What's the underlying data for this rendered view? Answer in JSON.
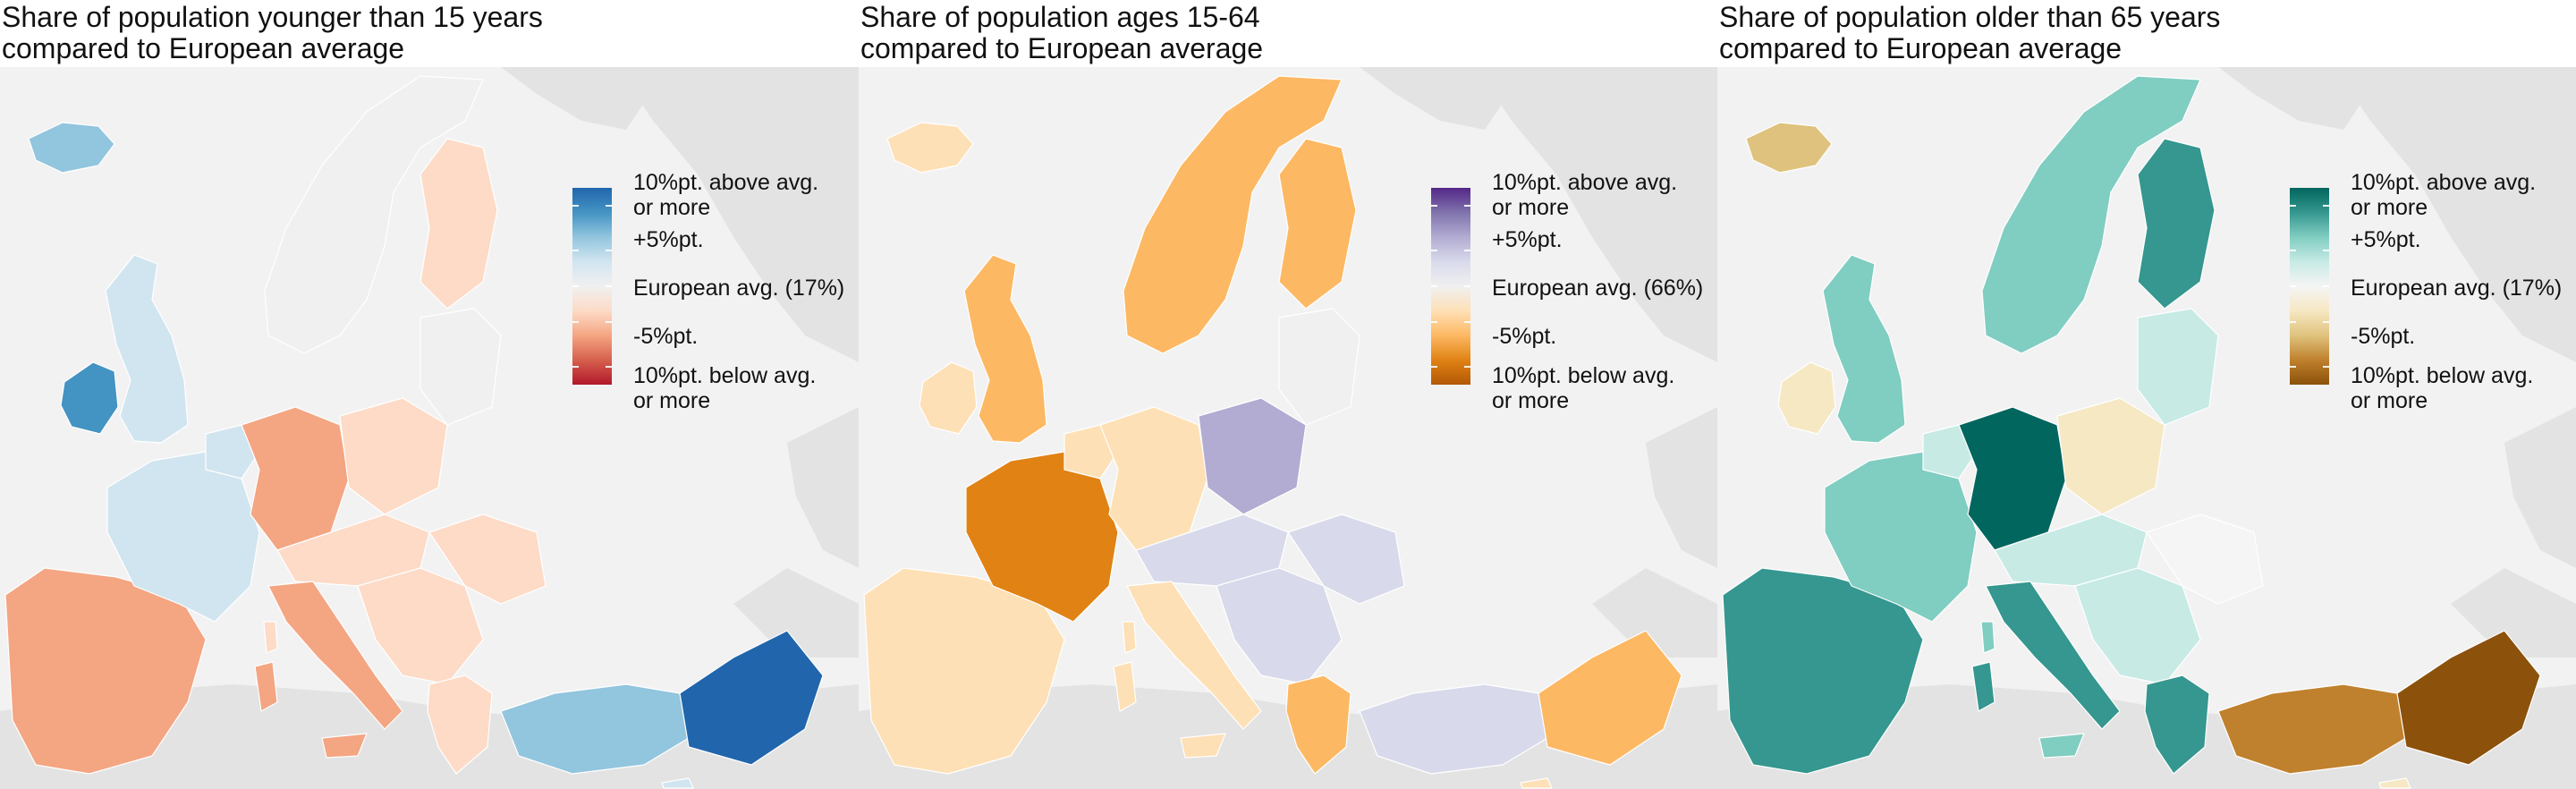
{
  "panels": [
    {
      "id": "young",
      "title_line1": "Share of population younger than 15 years",
      "title_line2": "compared to European average",
      "legend": {
        "top_line1": "10%pt. above avg.",
        "top_line2": "or more",
        "plus5": "+5%pt.",
        "avg": "European avg. (17%)",
        "minus5": "-5%pt.",
        "bottom_line1": "10%pt. below avg.",
        "bottom_line2": "or more"
      },
      "palette": [
        "#b2182b",
        "#d6604d",
        "#f4a582",
        "#fddbc7",
        "#f0f0f0",
        "#d1e5f0",
        "#92c5de",
        "#4393c3",
        "#2166ac"
      ],
      "region_levels": {
        "iceland": 6,
        "ireland": 7,
        "uk": 5,
        "scandinavia": 4,
        "finland": 3,
        "baltic": 4,
        "iberia": 2,
        "france": 5,
        "benelux": 5,
        "germany": 2,
        "poland": 3,
        "central": 3,
        "italy": 2,
        "balkans": 3,
        "greece": 3,
        "romania": 3,
        "turkey_w": 6,
        "turkey_e": 8,
        "cyprus": 5,
        "sardinia": 2,
        "sicily": 2,
        "corsica": 3
      }
    },
    {
      "id": "working",
      "title_line1": "Share of population ages 15-64",
      "title_line2": "compared to European average",
      "legend": {
        "top_line1": "10%pt. above avg.",
        "top_line2": "or more",
        "plus5": "+5%pt.",
        "avg": "European avg. (66%)",
        "minus5": "-5%pt.",
        "bottom_line1": "10%pt. below avg.",
        "bottom_line2": "or more"
      },
      "palette": [
        "#b35806",
        "#e08214",
        "#fdb863",
        "#fee0b6",
        "#f0f0f0",
        "#d8daeb",
        "#b2abd2",
        "#8073ac",
        "#542788"
      ],
      "region_levels": {
        "iceland": 3,
        "ireland": 3,
        "uk": 2,
        "scandinavia": 2,
        "finland": 2,
        "baltic": 4,
        "iberia": 3,
        "france": 1,
        "benelux": 3,
        "germany": 3,
        "poland": 6,
        "central": 5,
        "italy": 3,
        "balkans": 5,
        "greece": 2,
        "romania": 5,
        "turkey_w": 5,
        "turkey_e": 2,
        "cyprus": 3,
        "sardinia": 3,
        "sicily": 3,
        "corsica": 3
      }
    },
    {
      "id": "old",
      "title_line1": "Share of population older than 65 years",
      "title_line2": "compared to European average",
      "legend": {
        "top_line1": "10%pt. above avg.",
        "top_line2": "or more",
        "plus5": "+5%pt.",
        "avg": "European avg. (17%)",
        "minus5": "-5%pt.",
        "bottom_line1": "10%pt. below avg.",
        "bottom_line2": "or more"
      },
      "palette": [
        "#8c510a",
        "#bf812d",
        "#dfc27d",
        "#f6e8c3",
        "#f5f5f5",
        "#c7eae5",
        "#80cdc1",
        "#35978f",
        "#01665e"
      ],
      "region_levels": {
        "iceland": 2,
        "ireland": 3,
        "uk": 6,
        "scandinavia": 6,
        "finland": 7,
        "baltic": 5,
        "iberia": 7,
        "france": 6,
        "benelux": 5,
        "germany": 8,
        "poland": 3,
        "central": 5,
        "italy": 7,
        "balkans": 5,
        "greece": 7,
        "romania": 4,
        "turkey_w": 1,
        "turkey_e": 0,
        "cyprus": 3,
        "sardinia": 7,
        "sicily": 6,
        "corsica": 6
      }
    }
  ]
}
